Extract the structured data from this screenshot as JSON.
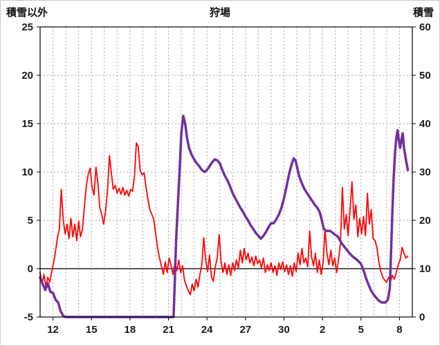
{
  "titles": {
    "left_axis_title": "積雪以外",
    "chart_title": "狩場",
    "right_axis_title": "積雪"
  },
  "chart_data": {
    "type": "line",
    "title": "狩場",
    "legend": "none",
    "grid": true,
    "left_axis": {
      "title": "積雪以外",
      "min": -5,
      "max": 25,
      "ticks": [
        -5,
        0,
        5,
        10,
        15,
        20,
        25
      ]
    },
    "right_axis": {
      "title": "積雪",
      "min": 0,
      "max": 60,
      "ticks": [
        0,
        10,
        20,
        30,
        40,
        50,
        60
      ]
    },
    "x_axis": {
      "min": 11,
      "max": 40,
      "grid_interval_days": 1,
      "tick_days": [
        12,
        15,
        18,
        21,
        24,
        27,
        30,
        33,
        36,
        39
      ],
      "tick_labels": [
        "12",
        "15",
        "18",
        "21",
        "24",
        "27",
        "30",
        "2",
        "5",
        "8"
      ]
    },
    "colors": {
      "red_line": "#FF0000",
      "purple_line": "#7030A0",
      "grid": "#a6a6a6",
      "zero_line": "#595959",
      "plot_border": "#000000",
      "tick_label": "#1a1a1a"
    },
    "series": [
      {
        "id": "red-line",
        "axis": "left",
        "color": "#FF0000",
        "width": 1.8,
        "points": [
          [
            11.0,
            -0.4
          ],
          [
            11.15,
            -1.6
          ],
          [
            11.3,
            -0.6
          ],
          [
            11.45,
            -1.9
          ],
          [
            11.6,
            -0.9
          ],
          [
            11.75,
            -1.4
          ],
          [
            11.9,
            -0.3
          ],
          [
            12.05,
            0.6
          ],
          [
            12.2,
            1.8
          ],
          [
            12.35,
            3.2
          ],
          [
            12.5,
            4.1
          ],
          [
            12.65,
            8.2
          ],
          [
            12.8,
            5.0
          ],
          [
            12.95,
            3.6
          ],
          [
            13.1,
            4.6
          ],
          [
            13.25,
            3.1
          ],
          [
            13.4,
            5.2
          ],
          [
            13.55,
            3.3
          ],
          [
            13.7,
            4.6
          ],
          [
            13.85,
            2.9
          ],
          [
            14.0,
            4.9
          ],
          [
            14.15,
            3.3
          ],
          [
            14.3,
            4.1
          ],
          [
            14.45,
            6.4
          ],
          [
            14.6,
            8.6
          ],
          [
            14.75,
            9.8
          ],
          [
            14.9,
            10.4
          ],
          [
            15.05,
            8.4
          ],
          [
            15.2,
            7.6
          ],
          [
            15.35,
            10.5
          ],
          [
            15.5,
            8.9
          ],
          [
            15.65,
            6.3
          ],
          [
            15.8,
            5.6
          ],
          [
            15.95,
            4.6
          ],
          [
            16.1,
            5.9
          ],
          [
            16.25,
            8.1
          ],
          [
            16.4,
            11.7
          ],
          [
            16.55,
            9.9
          ],
          [
            16.7,
            8.2
          ],
          [
            16.85,
            8.6
          ],
          [
            17.0,
            7.8
          ],
          [
            17.15,
            8.3
          ],
          [
            17.3,
            7.7
          ],
          [
            17.45,
            8.4
          ],
          [
            17.6,
            7.6
          ],
          [
            17.75,
            8.1
          ],
          [
            17.9,
            7.5
          ],
          [
            18.05,
            8.2
          ],
          [
            18.2,
            8.0
          ],
          [
            18.35,
            9.6
          ],
          [
            18.5,
            13.0
          ],
          [
            18.65,
            12.6
          ],
          [
            18.8,
            10.1
          ],
          [
            18.95,
            9.7
          ],
          [
            19.1,
            9.9
          ],
          [
            19.25,
            8.4
          ],
          [
            19.4,
            7.2
          ],
          [
            19.55,
            6.1
          ],
          [
            19.7,
            5.6
          ],
          [
            19.85,
            5.1
          ],
          [
            20.0,
            3.6
          ],
          [
            20.15,
            2.2
          ],
          [
            20.3,
            1.1
          ],
          [
            20.45,
            0.3
          ],
          [
            20.6,
            -0.6
          ],
          [
            20.75,
            0.7
          ],
          [
            20.9,
            -0.4
          ],
          [
            21.05,
            1.1
          ],
          [
            21.2,
            0.4
          ],
          [
            21.35,
            -0.6
          ],
          [
            21.5,
            0.6
          ],
          [
            21.65,
            -0.2
          ],
          [
            21.8,
            0.9
          ],
          [
            21.95,
            -0.4
          ],
          [
            22.1,
            0.3
          ],
          [
            22.25,
            -1.2
          ],
          [
            22.4,
            -1.8
          ],
          [
            22.55,
            -2.3
          ],
          [
            22.7,
            -2.7
          ],
          [
            22.85,
            -1.6
          ],
          [
            23.0,
            -2.3
          ],
          [
            23.15,
            -1.1
          ],
          [
            23.3,
            -1.9
          ],
          [
            23.45,
            -0.6
          ],
          [
            23.6,
            0.4
          ],
          [
            23.75,
            3.2
          ],
          [
            23.9,
            0.9
          ],
          [
            24.05,
            -0.3
          ],
          [
            24.2,
            1.4
          ],
          [
            24.35,
            -0.9
          ],
          [
            24.5,
            -1.3
          ],
          [
            24.65,
            0.2
          ],
          [
            24.8,
            1.1
          ],
          [
            24.95,
            3.5
          ],
          [
            25.1,
            0.7
          ],
          [
            25.25,
            -0.4
          ],
          [
            25.4,
            0.6
          ],
          [
            25.55,
            -0.6
          ],
          [
            25.7,
            0.4
          ],
          [
            25.85,
            -0.7
          ],
          [
            26.0,
            0.6
          ],
          [
            26.15,
            -0.2
          ],
          [
            26.3,
            0.9
          ],
          [
            26.45,
            0.1
          ],
          [
            26.6,
            1.9
          ],
          [
            26.75,
            0.6
          ],
          [
            26.9,
            2.1
          ],
          [
            27.05,
            0.9
          ],
          [
            27.2,
            1.6
          ],
          [
            27.35,
            0.6
          ],
          [
            27.5,
            1.2
          ],
          [
            27.65,
            0.3
          ],
          [
            27.8,
            1.3
          ],
          [
            27.95,
            0.5
          ],
          [
            28.1,
            0.9
          ],
          [
            28.25,
            0.1
          ],
          [
            28.4,
            1.1
          ],
          [
            28.55,
            -0.4
          ],
          [
            28.7,
            0.4
          ],
          [
            28.85,
            -0.2
          ],
          [
            29.0,
            0.6
          ],
          [
            29.15,
            -0.4
          ],
          [
            29.3,
            0.3
          ],
          [
            29.45,
            -0.7
          ],
          [
            29.6,
            0.6
          ],
          [
            29.75,
            -0.1
          ],
          [
            29.9,
            0.7
          ],
          [
            30.05,
            -0.3
          ],
          [
            30.2,
            0.4
          ],
          [
            30.35,
            -0.6
          ],
          [
            30.5,
            0.3
          ],
          [
            30.65,
            -0.8
          ],
          [
            30.8,
            0.6
          ],
          [
            30.95,
            -0.3
          ],
          [
            31.1,
            1.6
          ],
          [
            31.25,
            0.4
          ],
          [
            31.4,
            2.1
          ],
          [
            31.55,
            0.6
          ],
          [
            31.7,
            1.1
          ],
          [
            31.85,
            0.2
          ],
          [
            32.0,
            3.9
          ],
          [
            32.15,
            1.2
          ],
          [
            32.3,
            0.3
          ],
          [
            32.45,
            1.6
          ],
          [
            32.6,
            -0.4
          ],
          [
            32.75,
            0.9
          ],
          [
            32.9,
            -0.6
          ],
          [
            33.05,
            0.6
          ],
          [
            33.2,
            4.1
          ],
          [
            33.35,
            1.6
          ],
          [
            33.5,
            0.4
          ],
          [
            33.65,
            1.9
          ],
          [
            33.8,
            0.3
          ],
          [
            33.95,
            1.1
          ],
          [
            34.1,
            -0.4
          ],
          [
            34.25,
            0.9
          ],
          [
            34.4,
            2.6
          ],
          [
            34.55,
            8.4
          ],
          [
            34.7,
            4.1
          ],
          [
            34.85,
            5.6
          ],
          [
            35.0,
            3.4
          ],
          [
            35.15,
            6.1
          ],
          [
            35.3,
            9.0
          ],
          [
            35.45,
            5.1
          ],
          [
            35.6,
            6.6
          ],
          [
            35.75,
            3.3
          ],
          [
            35.9,
            5.2
          ],
          [
            36.05,
            3.6
          ],
          [
            36.2,
            5.4
          ],
          [
            36.35,
            3.4
          ],
          [
            36.5,
            7.8
          ],
          [
            36.65,
            4.6
          ],
          [
            36.8,
            6.1
          ],
          [
            36.95,
            3.1
          ],
          [
            37.1,
            2.9
          ],
          [
            37.25,
            2.1
          ],
          [
            37.4,
            0.6
          ],
          [
            37.55,
            -0.3
          ],
          [
            37.7,
            -0.9
          ],
          [
            37.85,
            -1.2
          ],
          [
            38.0,
            -1.4
          ],
          [
            38.15,
            -0.9
          ],
          [
            38.3,
            -1.3
          ],
          [
            38.45,
            -0.7
          ],
          [
            38.6,
            -1.1
          ],
          [
            38.75,
            -0.4
          ],
          [
            38.9,
            0.4
          ],
          [
            39.05,
            0.9
          ],
          [
            39.2,
            2.2
          ],
          [
            39.35,
            1.6
          ],
          [
            39.5,
            1.1
          ],
          [
            39.65,
            1.3
          ]
        ]
      },
      {
        "id": "purple-line",
        "axis": "right",
        "color": "#7030A0",
        "width": 3.5,
        "points": [
          [
            11.0,
            8.2
          ],
          [
            11.2,
            6.8
          ],
          [
            11.4,
            5.6
          ],
          [
            11.6,
            7.0
          ],
          [
            11.8,
            5.2
          ],
          [
            12.0,
            5.0
          ],
          [
            12.2,
            3.6
          ],
          [
            12.4,
            3.0
          ],
          [
            12.6,
            1.2
          ],
          [
            12.8,
            0.2
          ],
          [
            13.0,
            0
          ],
          [
            21.4,
            0
          ],
          [
            21.5,
            8
          ],
          [
            21.6,
            16
          ],
          [
            21.75,
            24
          ],
          [
            21.9,
            32
          ],
          [
            22.0,
            38
          ],
          [
            22.15,
            41.6
          ],
          [
            22.3,
            40.0
          ],
          [
            22.45,
            37.0
          ],
          [
            22.6,
            35.0
          ],
          [
            22.8,
            33.6
          ],
          [
            23.0,
            32.6
          ],
          [
            23.2,
            31.8
          ],
          [
            23.4,
            31.2
          ],
          [
            23.6,
            30.4
          ],
          [
            23.8,
            30.0
          ],
          [
            24.0,
            30.4
          ],
          [
            24.2,
            31.2
          ],
          [
            24.4,
            32.0
          ],
          [
            24.6,
            32.6
          ],
          [
            24.8,
            32.4
          ],
          [
            25.0,
            31.8
          ],
          [
            25.2,
            30.4
          ],
          [
            25.4,
            29.2
          ],
          [
            25.6,
            28.2
          ],
          [
            25.8,
            27.0
          ],
          [
            26.0,
            25.6
          ],
          [
            26.2,
            24.6
          ],
          [
            26.4,
            23.6
          ],
          [
            26.6,
            22.6
          ],
          [
            26.8,
            21.8
          ],
          [
            27.0,
            20.8
          ],
          [
            27.2,
            20.0
          ],
          [
            27.4,
            19.0
          ],
          [
            27.6,
            18.2
          ],
          [
            27.8,
            17.4
          ],
          [
            28.0,
            16.8
          ],
          [
            28.2,
            16.2
          ],
          [
            28.4,
            16.8
          ],
          [
            28.6,
            17.6
          ],
          [
            28.8,
            18.6
          ],
          [
            29.0,
            19.4
          ],
          [
            29.2,
            19.4
          ],
          [
            29.4,
            20.2
          ],
          [
            29.6,
            21.2
          ],
          [
            29.8,
            22.6
          ],
          [
            30.0,
            24.6
          ],
          [
            30.2,
            27.0
          ],
          [
            30.4,
            29.6
          ],
          [
            30.6,
            31.6
          ],
          [
            30.75,
            32.8
          ],
          [
            30.9,
            32.4
          ],
          [
            31.05,
            30.6
          ],
          [
            31.2,
            29.0
          ],
          [
            31.4,
            27.6
          ],
          [
            31.6,
            26.4
          ],
          [
            31.8,
            25.6
          ],
          [
            32.0,
            24.8
          ],
          [
            32.2,
            24.0
          ],
          [
            32.4,
            23.2
          ],
          [
            32.6,
            22.6
          ],
          [
            32.8,
            21.6
          ],
          [
            32.95,
            20.0
          ],
          [
            33.1,
            18.2
          ],
          [
            33.3,
            17.8
          ],
          [
            33.6,
            17.8
          ],
          [
            33.9,
            17.2
          ],
          [
            34.2,
            16.6
          ],
          [
            34.5,
            15.2
          ],
          [
            34.8,
            14.2
          ],
          [
            35.1,
            13.2
          ],
          [
            35.4,
            12.4
          ],
          [
            35.7,
            11.8
          ],
          [
            36.0,
            11.0
          ],
          [
            36.2,
            9.6
          ],
          [
            36.4,
            8.0
          ],
          [
            36.6,
            6.6
          ],
          [
            36.8,
            5.4
          ],
          [
            37.0,
            4.6
          ],
          [
            37.3,
            3.6
          ],
          [
            37.6,
            3.0
          ],
          [
            37.9,
            3.0
          ],
          [
            38.1,
            3.6
          ],
          [
            38.25,
            6.0
          ],
          [
            38.35,
            14.0
          ],
          [
            38.45,
            22.0
          ],
          [
            38.55,
            29.0
          ],
          [
            38.65,
            34.0
          ],
          [
            38.75,
            37.0
          ],
          [
            38.85,
            38.6
          ],
          [
            38.95,
            36.6
          ],
          [
            39.05,
            35.0
          ],
          [
            39.15,
            36.6
          ],
          [
            39.25,
            38.0
          ],
          [
            39.35,
            35.0
          ],
          [
            39.5,
            32.6
          ],
          [
            39.65,
            30.4
          ]
        ]
      }
    ]
  }
}
